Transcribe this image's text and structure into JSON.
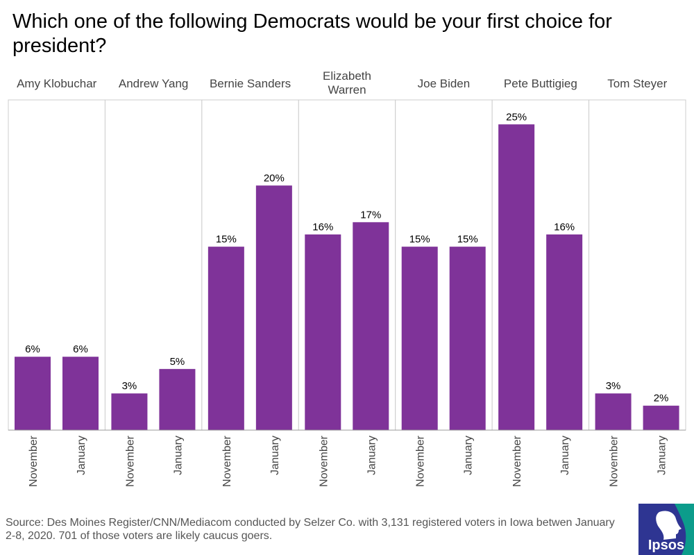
{
  "title": "Which one of the following Democrats would be your first choice for president?",
  "source": "Source: Des Moines Register/CNN/Mediacom conducted by Selzer Co. with 3,131 registered voters in Iowa betwen January 2-8, 2020. 701 of those voters are likely caucus goers.",
  "logo": {
    "text": "Ipsos",
    "colors": {
      "blue": "#2e3592",
      "teal": "#0c9c8b"
    }
  },
  "colors": {
    "bar": "#7f3399",
    "panel_border": "#cccccc",
    "axis": "#999999",
    "panel_bg": "#ffffff"
  },
  "chart_data": {
    "type": "bar",
    "title": "Which one of the following Democrats would be your first choice for president?",
    "groups": [
      "Amy Klobuchar",
      "Andrew Yang",
      "Bernie Sanders",
      "Elizabeth Warren",
      "Joe Biden",
      "Pete Buttigieg",
      "Tom Steyer"
    ],
    "categories": [
      "November",
      "January"
    ],
    "values": [
      [
        6,
        6
      ],
      [
        3,
        5
      ],
      [
        15,
        20
      ],
      [
        16,
        17
      ],
      [
        15,
        15
      ],
      [
        25,
        16
      ],
      [
        3,
        2
      ]
    ],
    "value_labels": [
      [
        "6%",
        "6%"
      ],
      [
        "3%",
        "5%"
      ],
      [
        "15%",
        "20%"
      ],
      [
        "16%",
        "17%"
      ],
      [
        "15%",
        "15%"
      ],
      [
        "25%",
        "16%"
      ],
      [
        "3%",
        "2%"
      ]
    ],
    "ylim": [
      0,
      27
    ],
    "grid": false,
    "legend": "none",
    "xlabel": "",
    "ylabel": ""
  }
}
